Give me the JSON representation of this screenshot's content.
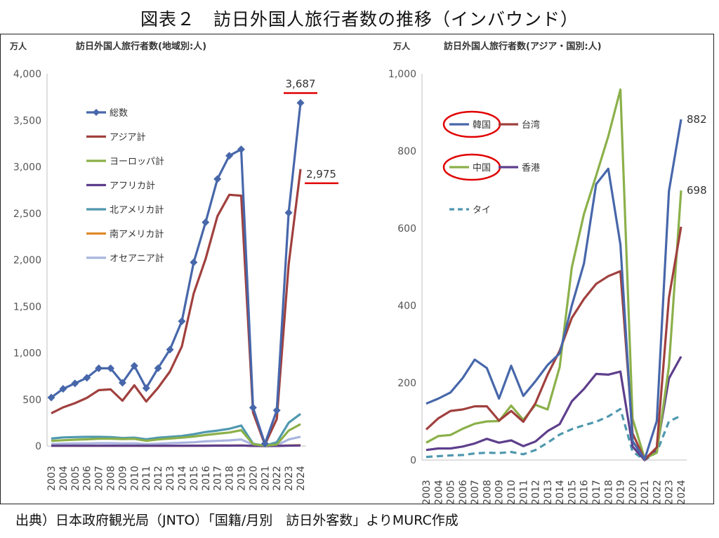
{
  "figure_title": "図表２　訪日外国人旅行者数の推移（インバウンド）",
  "source": "出典）日本政府観光局（JNTO）「国籍/月別　訪日外客数」よりMURC作成",
  "chart_data": [
    {
      "type": "line",
      "title": "訪日外国人旅行者数(地域別:人)",
      "unit_label": "万人",
      "ylim": [
        0,
        4000
      ],
      "yticks": [
        "0",
        "500",
        "1,000",
        "1,500",
        "2,000",
        "2,500",
        "3,000",
        "3,500",
        "4,000"
      ],
      "x": [
        "2003",
        "2004",
        "2005",
        "2006",
        "2007",
        "2008",
        "2009",
        "2010",
        "2011",
        "2012",
        "2013",
        "2014",
        "2015",
        "2016",
        "2017",
        "2018",
        "2019",
        "2020",
        "2021",
        "2022",
        "2023",
        "2024"
      ],
      "legend_position": "left",
      "grid": false,
      "series": [
        {
          "name": "総数",
          "color": "#4767AA",
          "marker": "diamond",
          "values": [
            521,
            614,
            673,
            733,
            835,
            835,
            679,
            861,
            622,
            836,
            1036,
            1341,
            1974,
            2404,
            2869,
            3119,
            3188,
            412,
            25,
            383,
            2507,
            3687
          ]
        },
        {
          "name": "アジア計",
          "color": "#A0403E",
          "values": [
            352,
            415,
            460,
            517,
            600,
            608,
            487,
            652,
            478,
            625,
            800,
            1070,
            1640,
            2010,
            2470,
            2700,
            2690,
            360,
            14,
            290,
            1950,
            2975
          ]
        },
        {
          "name": "ヨーロッパ計",
          "color": "#8BB04A",
          "values": [
            55,
            62,
            68,
            72,
            78,
            78,
            75,
            77,
            56,
            70,
            80,
            90,
            102,
            118,
            132,
            145,
            170,
            20,
            3,
            16,
            165,
            235
          ]
        },
        {
          "name": "アフリカ計",
          "color": "#5E3F8C",
          "values": [
            2,
            2,
            2,
            2,
            2,
            3,
            2,
            2,
            2,
            2,
            3,
            3,
            3,
            3,
            4,
            4,
            5,
            1,
            0,
            1,
            4,
            5
          ]
        },
        {
          "name": "北アメリカ計",
          "color": "#4F98AF",
          "values": [
            80,
            92,
            96,
            98,
            98,
            95,
            86,
            90,
            72,
            89,
            98,
            108,
            127,
            150,
            165,
            185,
            220,
            24,
            3,
            40,
            250,
            345
          ]
        },
        {
          "name": "南アメリカ計",
          "color": "#E08A2C",
          "values": [
            3,
            3,
            3,
            3,
            3,
            3,
            3,
            3,
            3,
            3,
            3,
            3,
            4,
            4,
            5,
            5,
            6,
            1,
            0,
            1,
            6,
            8
          ]
        },
        {
          "name": "オセアニア計",
          "color": "#A9B5DF",
          "values": [
            22,
            25,
            27,
            28,
            30,
            30,
            28,
            29,
            20,
            25,
            30,
            35,
            40,
            50,
            55,
            60,
            70,
            14,
            1,
            7,
            70,
            100
          ]
        }
      ],
      "annotations": [
        {
          "label": "3,687",
          "series": "総数",
          "year": "2024",
          "value": 3687
        },
        {
          "label": "2,975",
          "series": "アジア計",
          "year": "2024",
          "value": 2975
        }
      ],
      "highlight_color": "#E00000"
    },
    {
      "type": "line",
      "title": "訪日外国人旅行者数(アジア・国別:人)",
      "unit_label": "万人",
      "ylim": [
        0,
        1000
      ],
      "yticks": [
        "0",
        "200",
        "400",
        "600",
        "800",
        "1,000"
      ],
      "x": [
        "2003",
        "2004",
        "2005",
        "2006",
        "2007",
        "2008",
        "2009",
        "2010",
        "2011",
        "2012",
        "2013",
        "2014",
        "2015",
        "2016",
        "2017",
        "2018",
        "2019",
        "2020",
        "2021",
        "2022",
        "2023",
        "2024"
      ],
      "legend_position": "top-left",
      "grid": false,
      "series": [
        {
          "name": "韓国",
          "color": "#4767AA",
          "values": [
            146,
            159,
            175,
            212,
            260,
            238,
            159,
            244,
            166,
            204,
            246,
            276,
            400,
            509,
            714,
            754,
            558,
            49,
            2,
            101,
            696,
            882
          ]
        },
        {
          "name": "台湾",
          "color": "#A0403E",
          "values": [
            79,
            108,
            127,
            131,
            139,
            139,
            102,
            127,
            99,
            147,
            221,
            283,
            368,
            417,
            456,
            476,
            489,
            69,
            1,
            33,
            420,
            604
          ]
        },
        {
          "name": "中国",
          "color": "#8BB04A",
          "values": [
            45,
            62,
            65,
            81,
            94,
            100,
            101,
            141,
            104,
            143,
            131,
            241,
            499,
            637,
            736,
            838,
            959,
            107,
            4,
            19,
            243,
            698
          ]
        },
        {
          "name": "香港",
          "color": "#5E3F8C",
          "values": [
            26,
            30,
            30,
            35,
            43,
            55,
            45,
            51,
            36,
            48,
            75,
            93,
            152,
            184,
            223,
            221,
            229,
            35,
            0,
            27,
            211,
            268
          ]
        },
        {
          "name": "タイ",
          "color": "#4F98AF",
          "dashed": true,
          "values": [
            8,
            10,
            12,
            13,
            17,
            19,
            18,
            21,
            15,
            26,
            45,
            66,
            80,
            90,
            99,
            113,
            132,
            22,
            0,
            20,
            100,
            115
          ]
        }
      ],
      "annotations": [
        {
          "label": "882",
          "series": "韓国",
          "year": "2024",
          "value": 882
        },
        {
          "label": "698",
          "series": "中国",
          "year": "2024",
          "value": 698
        }
      ],
      "highlight_color": "#E00000"
    }
  ]
}
